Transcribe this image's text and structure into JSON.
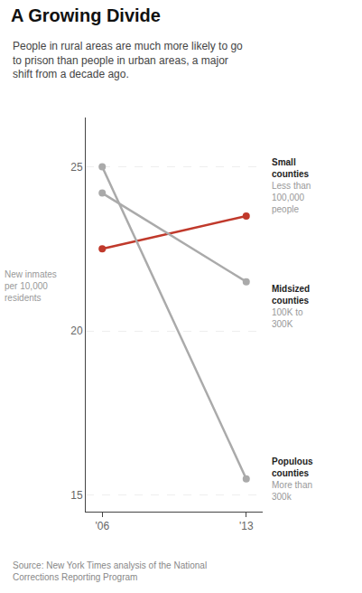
{
  "chart_data": {
    "type": "line",
    "title": "A Growing Divide",
    "subtitle": "People in rural areas are much more likely to go\nto prison than people in urban areas, a major\nshift from a decade ago.",
    "source": "Source: New York Times analysis of the National\nCorrections Reporting Program",
    "ylabel": "New inmates\nper 10,000\nresidents",
    "x": [
      2006,
      2013
    ],
    "xlim": [
      2005.2,
      2013.8
    ],
    "xticks": [
      {
        "value": 2006,
        "label": "'06"
      },
      {
        "value": 2013,
        "label": "'13"
      }
    ],
    "ylim": [
      14.5,
      26.5
    ],
    "yticks": [
      15,
      20,
      25
    ],
    "grid": true,
    "marker": "circle",
    "series": [
      {
        "name": "Small\ncounties",
        "color": "#c0392b",
        "values": [
          22.5,
          23.5
        ]
      },
      {
        "name": "Midsized\ncounties",
        "color": "#aaaaaa",
        "values": [
          24.2,
          21.5
        ]
      },
      {
        "name": "Populous\ncounties",
        "color": "#aaaaaa",
        "values": [
          25.0,
          15.5
        ]
      }
    ],
    "annotations": [
      "Less than\n100,000\npeople",
      "100K to\n300K",
      "More than\n300k"
    ]
  }
}
